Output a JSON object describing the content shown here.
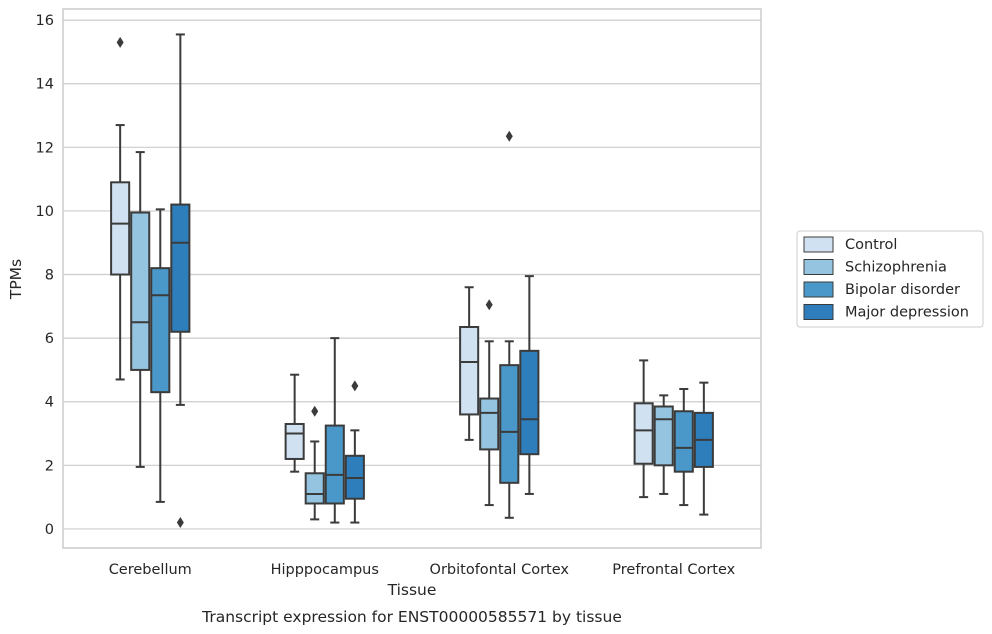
{
  "chart_data": {
    "type": "boxplot",
    "title": "",
    "caption": "Transcript expression for ENST00000585571 by tissue",
    "xlabel": "Tissue",
    "ylabel": "TPMs",
    "ylim": [
      -0.6,
      16.35
    ],
    "yticks": [
      0,
      2,
      4,
      6,
      8,
      10,
      12,
      14,
      16
    ],
    "grid": true,
    "legend_position": "right",
    "categories": [
      "Cerebellum",
      "Hipppocampus",
      "Orbitofontal Cortex",
      "Prefrontal Cortex"
    ],
    "series": [
      {
        "name": "Control",
        "color": "#d0e1f2",
        "boxes": [
          {
            "whisker_low": 4.7,
            "q1": 8.0,
            "median": 9.6,
            "q3": 10.9,
            "whisker_high": 12.7,
            "outliers": [
              15.3
            ]
          },
          {
            "whisker_low": 1.8,
            "q1": 2.2,
            "median": 3.0,
            "q3": 3.3,
            "whisker_high": 4.85,
            "outliers": []
          },
          {
            "whisker_low": 2.8,
            "q1": 3.6,
            "median": 5.25,
            "q3": 6.35,
            "whisker_high": 7.6,
            "outliers": []
          },
          {
            "whisker_low": 1.0,
            "q1": 2.05,
            "median": 3.1,
            "q3": 3.95,
            "whisker_high": 5.3,
            "outliers": []
          }
        ]
      },
      {
        "name": "Schizophrenia",
        "color": "#94c4df",
        "boxes": [
          {
            "whisker_low": 1.95,
            "q1": 5.0,
            "median": 6.5,
            "q3": 9.95,
            "whisker_high": 11.85,
            "outliers": []
          },
          {
            "whisker_low": 0.3,
            "q1": 0.8,
            "median": 1.1,
            "q3": 1.75,
            "whisker_high": 2.75,
            "outliers": [
              3.7
            ]
          },
          {
            "whisker_low": 0.75,
            "q1": 2.5,
            "median": 3.65,
            "q3": 4.1,
            "whisker_high": 5.9,
            "outliers": [
              7.05
            ]
          },
          {
            "whisker_low": 1.1,
            "q1": 2.0,
            "median": 3.45,
            "q3": 3.85,
            "whisker_high": 4.2,
            "outliers": []
          }
        ]
      },
      {
        "name": "Bipolar disorder",
        "color": "#4a98c9",
        "boxes": [
          {
            "whisker_low": 0.85,
            "q1": 4.3,
            "median": 7.35,
            "q3": 8.2,
            "whisker_high": 10.05,
            "outliers": []
          },
          {
            "whisker_low": 0.2,
            "q1": 0.8,
            "median": 1.7,
            "q3": 3.25,
            "whisker_high": 6.0,
            "outliers": []
          },
          {
            "whisker_low": 0.35,
            "q1": 1.45,
            "median": 3.05,
            "q3": 5.15,
            "whisker_high": 5.9,
            "outliers": [
              12.35
            ]
          },
          {
            "whisker_low": 0.75,
            "q1": 1.8,
            "median": 2.55,
            "q3": 3.7,
            "whisker_high": 4.4,
            "outliers": []
          }
        ]
      },
      {
        "name": "Major depression",
        "color": "#2e7ebc",
        "boxes": [
          {
            "whisker_low": 3.9,
            "q1": 6.2,
            "median": 9.0,
            "q3": 10.2,
            "whisker_high": 15.55,
            "outliers": [
              0.2
            ]
          },
          {
            "whisker_low": 0.2,
            "q1": 0.95,
            "median": 1.6,
            "q3": 2.3,
            "whisker_high": 3.1,
            "outliers": [
              4.5
            ]
          },
          {
            "whisker_low": 1.1,
            "q1": 2.35,
            "median": 3.45,
            "q3": 5.6,
            "whisker_high": 7.95,
            "outliers": []
          },
          {
            "whisker_low": 0.45,
            "q1": 1.95,
            "median": 2.8,
            "q3": 3.65,
            "whisker_high": 4.6,
            "outliers": []
          }
        ]
      }
    ]
  }
}
